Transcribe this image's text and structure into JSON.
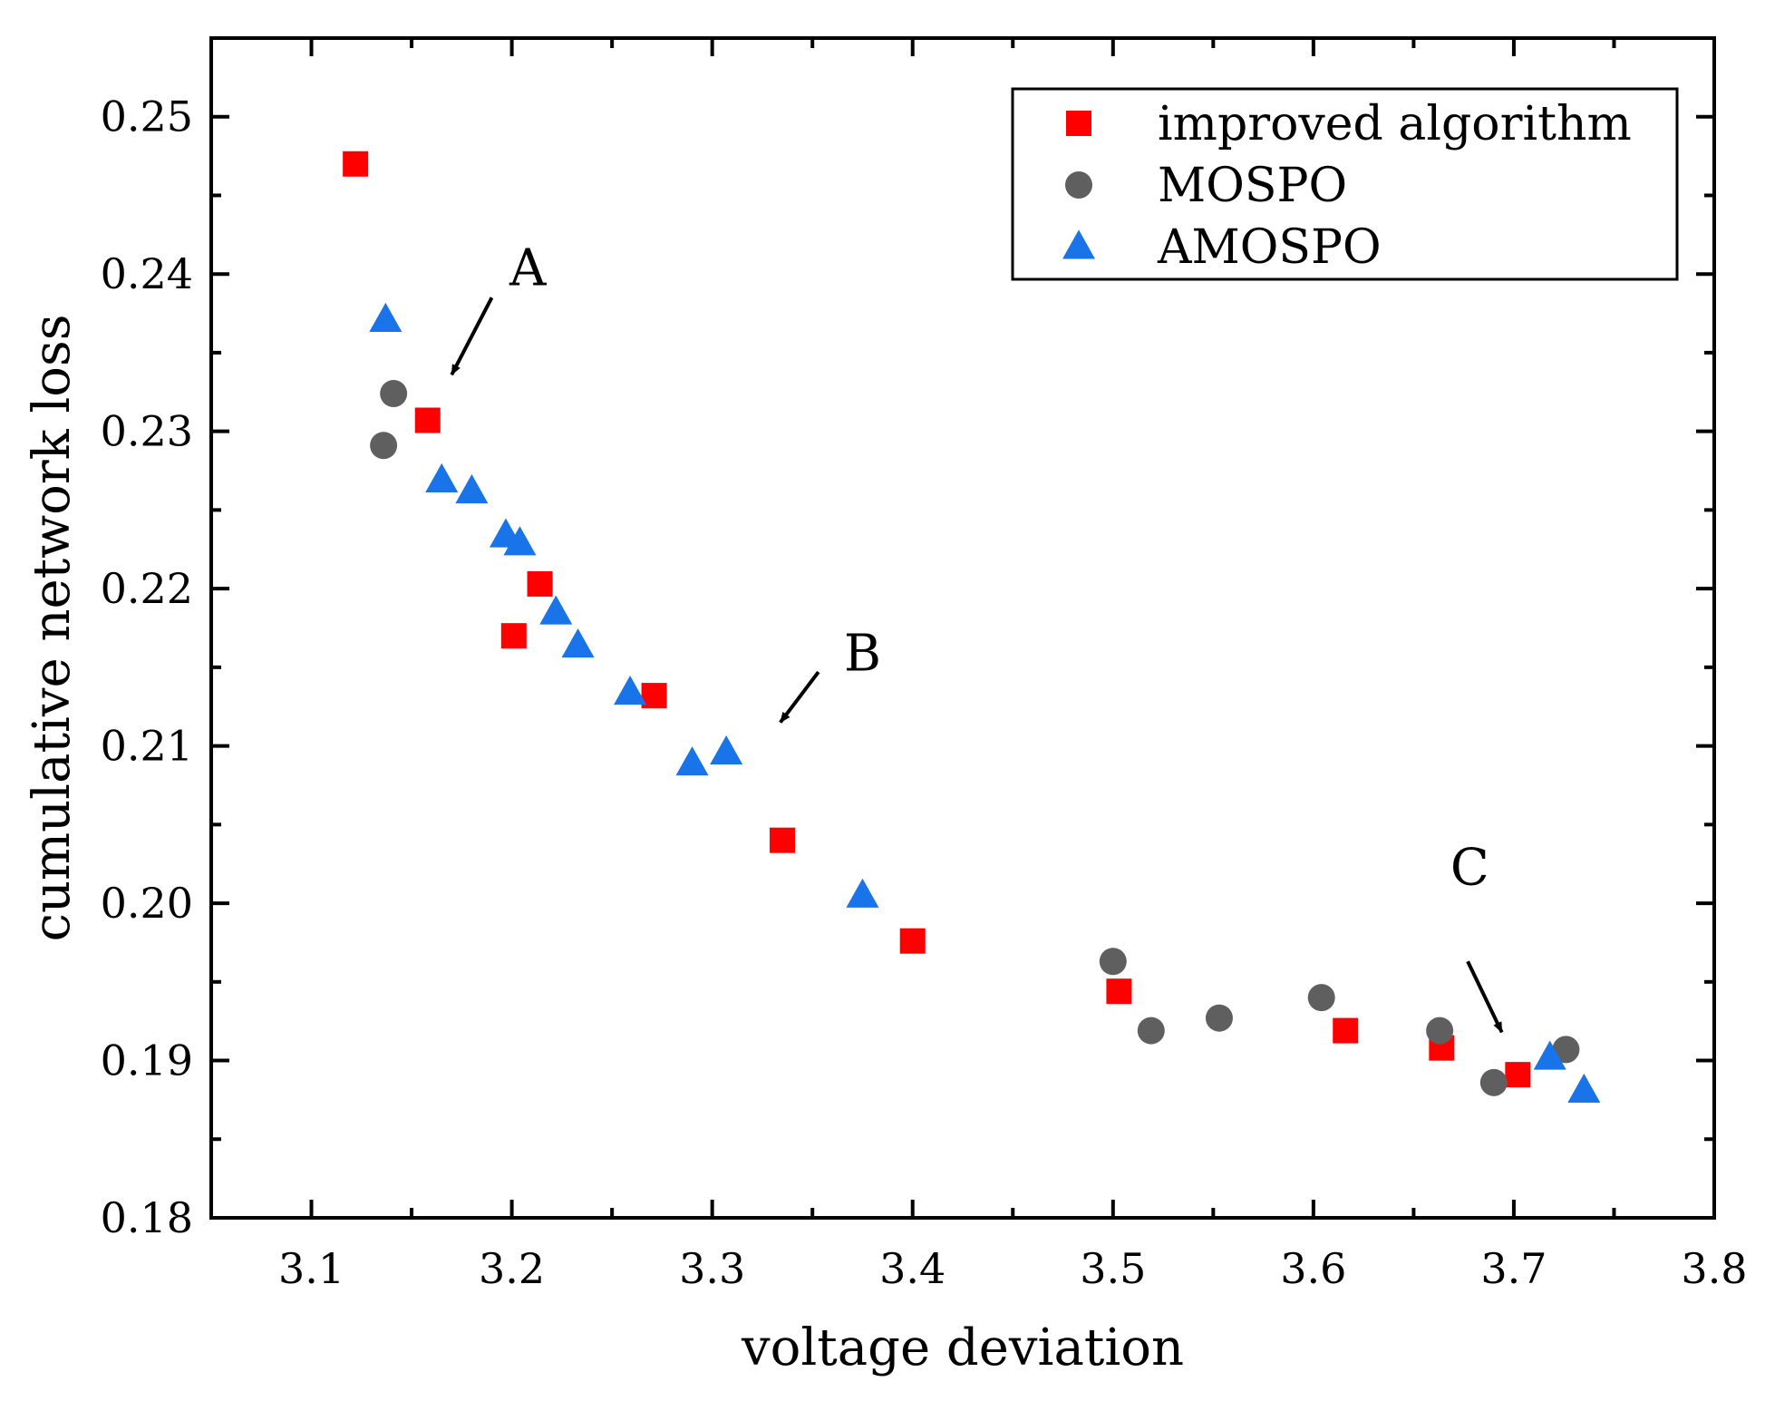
{
  "chart_data": {
    "type": "scatter",
    "title": "",
    "xlabel": "voltage deviation",
    "ylabel": "cumulative network loss",
    "xlim": [
      3.05,
      3.8
    ],
    "ylim": [
      0.18,
      0.255
    ],
    "x_ticks": [
      "3.1",
      "3.2",
      "3.3",
      "3.4",
      "3.5",
      "3.6",
      "3.7",
      "3.8"
    ],
    "y_ticks": [
      "0.18",
      "0.19",
      "0.20",
      "0.21",
      "0.22",
      "0.23",
      "0.24",
      "0.25"
    ],
    "grid": false,
    "legend_position": "top-right",
    "series": [
      {
        "name": "improved algorithm",
        "marker": "square",
        "color": "#ff0000",
        "points": [
          [
            3.122,
            0.247
          ],
          [
            3.158,
            0.2307
          ],
          [
            3.214,
            0.2203
          ],
          [
            3.201,
            0.217
          ],
          [
            3.271,
            0.2132
          ],
          [
            3.335,
            0.204
          ],
          [
            3.4,
            0.1976
          ],
          [
            3.503,
            0.1944
          ],
          [
            3.616,
            0.1919
          ],
          [
            3.664,
            0.1908
          ],
          [
            3.702,
            0.1891
          ]
        ]
      },
      {
        "name": "MOSPO",
        "marker": "circle",
        "color": "#5f5f5f",
        "points": [
          [
            3.141,
            0.2324
          ],
          [
            3.136,
            0.2291
          ],
          [
            3.5,
            0.1963
          ],
          [
            3.519,
            0.1919
          ],
          [
            3.553,
            0.1927
          ],
          [
            3.604,
            0.194
          ],
          [
            3.663,
            0.1919
          ],
          [
            3.69,
            0.1886
          ],
          [
            3.726,
            0.1907
          ]
        ]
      },
      {
        "name": "AMOSPO",
        "marker": "triangle",
        "color": "#1874e8",
        "points": [
          [
            3.137,
            0.2371
          ],
          [
            3.165,
            0.2269
          ],
          [
            3.18,
            0.2262
          ],
          [
            3.197,
            0.2234
          ],
          [
            3.204,
            0.2229
          ],
          [
            3.222,
            0.2185
          ],
          [
            3.233,
            0.2164
          ],
          [
            3.259,
            0.2134
          ],
          [
            3.29,
            0.2089
          ],
          [
            3.307,
            0.2096
          ],
          [
            3.375,
            0.2005
          ],
          [
            3.718,
            0.1902
          ],
          [
            3.735,
            0.1881
          ]
        ]
      }
    ],
    "annotations": [
      {
        "label": "A",
        "text_at": [
          3.208,
          0.2393
        ],
        "arrow_from": [
          3.19,
          0.2385
        ],
        "arrow_to": [
          3.17,
          0.2336
        ]
      },
      {
        "label": "B",
        "text_at": [
          3.375,
          0.2148
        ],
        "arrow_from": [
          3.353,
          0.2147
        ],
        "arrow_to": [
          3.334,
          0.2115
        ]
      },
      {
        "label": "C",
        "text_at": [
          3.678,
          0.2012
        ],
        "arrow_from": [
          3.677,
          0.1963
        ],
        "arrow_to": [
          3.694,
          0.1918
        ]
      }
    ]
  }
}
